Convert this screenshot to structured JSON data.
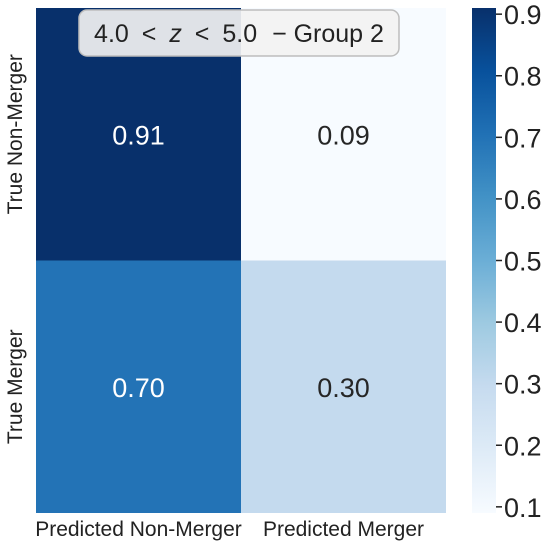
{
  "chart_data": {
    "type": "heatmap",
    "title_parts": {
      "lower": "4.0",
      "lt1": "<",
      "var": "z",
      "lt2": "<",
      "upper": "5.0",
      "suffix": "− Group 2"
    },
    "x_categories": [
      "Predicted Non-Merger",
      "Predicted Merger"
    ],
    "y_categories": [
      "True Non-Merger",
      "True Merger"
    ],
    "values": [
      [
        0.91,
        0.09
      ],
      [
        0.7,
        0.3
      ]
    ],
    "cell_labels": [
      [
        "0.91",
        "0.09"
      ],
      [
        "0.70",
        "0.30"
      ]
    ],
    "colorbar": {
      "min": 0.09,
      "max": 0.91,
      "ticks": [
        0.1,
        0.2,
        0.3,
        0.4,
        0.5,
        0.6,
        0.7,
        0.8,
        0.9
      ],
      "tick_labels": [
        "0.1",
        "0.2",
        "0.3",
        "0.4",
        "0.5",
        "0.6",
        "0.7",
        "0.8",
        "0.9"
      ],
      "colormap": "Blues"
    },
    "colors": {
      "blues_stops": [
        "#f7fbff",
        "#deebf7",
        "#c6dbef",
        "#9ecae1",
        "#6baed6",
        "#4292c6",
        "#2171b5",
        "#08519c",
        "#08306b"
      ]
    }
  }
}
